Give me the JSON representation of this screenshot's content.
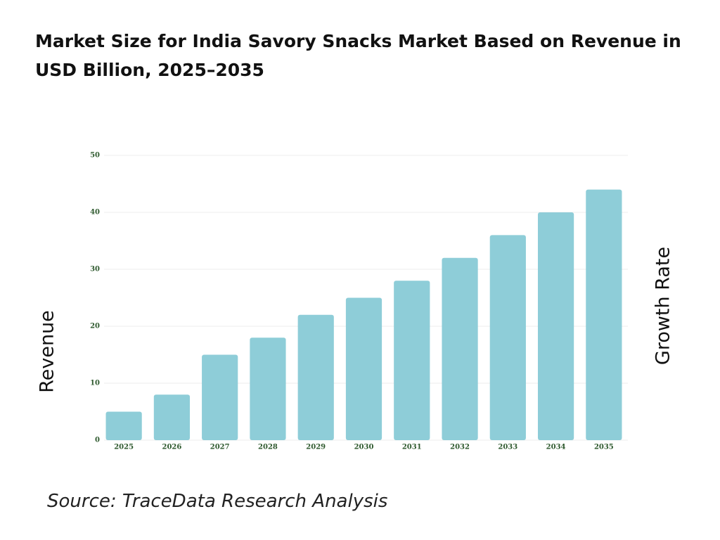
{
  "chart_data": {
    "type": "bar",
    "title": "Market Size for India Savory Snacks Market Based on Revenue in USD Billion, 2025–2035",
    "y_label": "Revenue",
    "y2_label": "Growth Rate",
    "source": "Source: TraceData Research Analysis",
    "categories": [
      "2025",
      "2026",
      "2027",
      "2028",
      "2029",
      "2030",
      "2031",
      "2032",
      "2033",
      "2034",
      "2035"
    ],
    "values": [
      5,
      8,
      15,
      18,
      22,
      25,
      28,
      32,
      36,
      40,
      44
    ],
    "color": "#8ecdd8",
    "ylim": [
      0,
      50
    ],
    "yticks": [
      0,
      10,
      20,
      30,
      40,
      50
    ],
    "grid": true
  }
}
